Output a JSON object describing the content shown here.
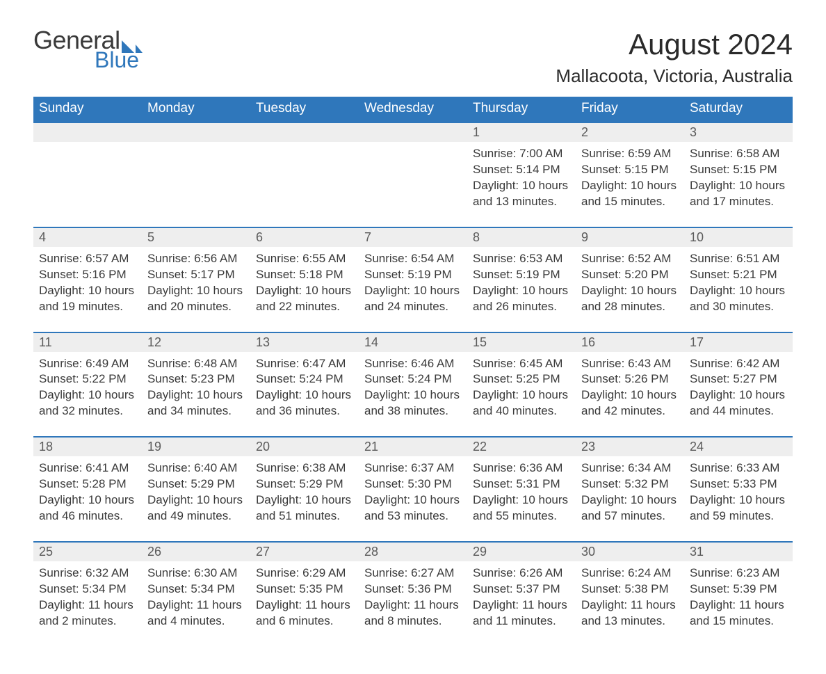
{
  "logo": {
    "text_general": "General",
    "text_blue": "Blue",
    "sail_color": "#2f77bb",
    "text_general_color": "#3a3a3a",
    "text_blue_color": "#2f77bb"
  },
  "header": {
    "title": "August 2024",
    "subtitle": "Mallacoota, Victoria, Australia"
  },
  "calendar": {
    "header_bg": "#2f77bb",
    "header_fg": "#ffffff",
    "daynum_bg": "#eeeeee",
    "row_border_color": "#2f77bb",
    "body_text_color": "#3a3a3a",
    "font_family": "Arial",
    "title_fontsize": 42,
    "subtitle_fontsize": 26,
    "header_fontsize": 19,
    "daynum_fontsize": 18,
    "body_fontsize": 17,
    "days_of_week": [
      "Sunday",
      "Monday",
      "Tuesday",
      "Wednesday",
      "Thursday",
      "Friday",
      "Saturday"
    ],
    "weeks": [
      [
        null,
        null,
        null,
        null,
        {
          "n": "1",
          "sunrise": "Sunrise: 7:00 AM",
          "sunset": "Sunset: 5:14 PM",
          "daylight": "Daylight: 10 hours and 13 minutes."
        },
        {
          "n": "2",
          "sunrise": "Sunrise: 6:59 AM",
          "sunset": "Sunset: 5:15 PM",
          "daylight": "Daylight: 10 hours and 15 minutes."
        },
        {
          "n": "3",
          "sunrise": "Sunrise: 6:58 AM",
          "sunset": "Sunset: 5:15 PM",
          "daylight": "Daylight: 10 hours and 17 minutes."
        }
      ],
      [
        {
          "n": "4",
          "sunrise": "Sunrise: 6:57 AM",
          "sunset": "Sunset: 5:16 PM",
          "daylight": "Daylight: 10 hours and 19 minutes."
        },
        {
          "n": "5",
          "sunrise": "Sunrise: 6:56 AM",
          "sunset": "Sunset: 5:17 PM",
          "daylight": "Daylight: 10 hours and 20 minutes."
        },
        {
          "n": "6",
          "sunrise": "Sunrise: 6:55 AM",
          "sunset": "Sunset: 5:18 PM",
          "daylight": "Daylight: 10 hours and 22 minutes."
        },
        {
          "n": "7",
          "sunrise": "Sunrise: 6:54 AM",
          "sunset": "Sunset: 5:19 PM",
          "daylight": "Daylight: 10 hours and 24 minutes."
        },
        {
          "n": "8",
          "sunrise": "Sunrise: 6:53 AM",
          "sunset": "Sunset: 5:19 PM",
          "daylight": "Daylight: 10 hours and 26 minutes."
        },
        {
          "n": "9",
          "sunrise": "Sunrise: 6:52 AM",
          "sunset": "Sunset: 5:20 PM",
          "daylight": "Daylight: 10 hours and 28 minutes."
        },
        {
          "n": "10",
          "sunrise": "Sunrise: 6:51 AM",
          "sunset": "Sunset: 5:21 PM",
          "daylight": "Daylight: 10 hours and 30 minutes."
        }
      ],
      [
        {
          "n": "11",
          "sunrise": "Sunrise: 6:49 AM",
          "sunset": "Sunset: 5:22 PM",
          "daylight": "Daylight: 10 hours and 32 minutes."
        },
        {
          "n": "12",
          "sunrise": "Sunrise: 6:48 AM",
          "sunset": "Sunset: 5:23 PM",
          "daylight": "Daylight: 10 hours and 34 minutes."
        },
        {
          "n": "13",
          "sunrise": "Sunrise: 6:47 AM",
          "sunset": "Sunset: 5:24 PM",
          "daylight": "Daylight: 10 hours and 36 minutes."
        },
        {
          "n": "14",
          "sunrise": "Sunrise: 6:46 AM",
          "sunset": "Sunset: 5:24 PM",
          "daylight": "Daylight: 10 hours and 38 minutes."
        },
        {
          "n": "15",
          "sunrise": "Sunrise: 6:45 AM",
          "sunset": "Sunset: 5:25 PM",
          "daylight": "Daylight: 10 hours and 40 minutes."
        },
        {
          "n": "16",
          "sunrise": "Sunrise: 6:43 AM",
          "sunset": "Sunset: 5:26 PM",
          "daylight": "Daylight: 10 hours and 42 minutes."
        },
        {
          "n": "17",
          "sunrise": "Sunrise: 6:42 AM",
          "sunset": "Sunset: 5:27 PM",
          "daylight": "Daylight: 10 hours and 44 minutes."
        }
      ],
      [
        {
          "n": "18",
          "sunrise": "Sunrise: 6:41 AM",
          "sunset": "Sunset: 5:28 PM",
          "daylight": "Daylight: 10 hours and 46 minutes."
        },
        {
          "n": "19",
          "sunrise": "Sunrise: 6:40 AM",
          "sunset": "Sunset: 5:29 PM",
          "daylight": "Daylight: 10 hours and 49 minutes."
        },
        {
          "n": "20",
          "sunrise": "Sunrise: 6:38 AM",
          "sunset": "Sunset: 5:29 PM",
          "daylight": "Daylight: 10 hours and 51 minutes."
        },
        {
          "n": "21",
          "sunrise": "Sunrise: 6:37 AM",
          "sunset": "Sunset: 5:30 PM",
          "daylight": "Daylight: 10 hours and 53 minutes."
        },
        {
          "n": "22",
          "sunrise": "Sunrise: 6:36 AM",
          "sunset": "Sunset: 5:31 PM",
          "daylight": "Daylight: 10 hours and 55 minutes."
        },
        {
          "n": "23",
          "sunrise": "Sunrise: 6:34 AM",
          "sunset": "Sunset: 5:32 PM",
          "daylight": "Daylight: 10 hours and 57 minutes."
        },
        {
          "n": "24",
          "sunrise": "Sunrise: 6:33 AM",
          "sunset": "Sunset: 5:33 PM",
          "daylight": "Daylight: 10 hours and 59 minutes."
        }
      ],
      [
        {
          "n": "25",
          "sunrise": "Sunrise: 6:32 AM",
          "sunset": "Sunset: 5:34 PM",
          "daylight": "Daylight: 11 hours and 2 minutes."
        },
        {
          "n": "26",
          "sunrise": "Sunrise: 6:30 AM",
          "sunset": "Sunset: 5:34 PM",
          "daylight": "Daylight: 11 hours and 4 minutes."
        },
        {
          "n": "27",
          "sunrise": "Sunrise: 6:29 AM",
          "sunset": "Sunset: 5:35 PM",
          "daylight": "Daylight: 11 hours and 6 minutes."
        },
        {
          "n": "28",
          "sunrise": "Sunrise: 6:27 AM",
          "sunset": "Sunset: 5:36 PM",
          "daylight": "Daylight: 11 hours and 8 minutes."
        },
        {
          "n": "29",
          "sunrise": "Sunrise: 6:26 AM",
          "sunset": "Sunset: 5:37 PM",
          "daylight": "Daylight: 11 hours and 11 minutes."
        },
        {
          "n": "30",
          "sunrise": "Sunrise: 6:24 AM",
          "sunset": "Sunset: 5:38 PM",
          "daylight": "Daylight: 11 hours and 13 minutes."
        },
        {
          "n": "31",
          "sunrise": "Sunrise: 6:23 AM",
          "sunset": "Sunset: 5:39 PM",
          "daylight": "Daylight: 11 hours and 15 minutes."
        }
      ]
    ]
  }
}
